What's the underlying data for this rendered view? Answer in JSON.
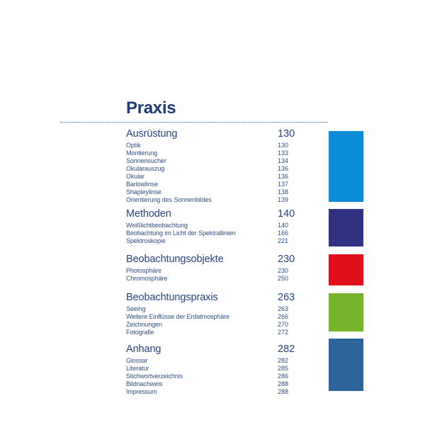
{
  "title": "Praxis",
  "colors": {
    "title_text": "#1d3b77",
    "heading_text": "#26437f",
    "entry_text": "#2e4d87",
    "divider": "#41609f"
  },
  "sections": [
    {
      "title": "Ausrüstung",
      "page": "130",
      "accent_color": "#0a8dd4",
      "entries": [
        {
          "label": "Optik",
          "page": "130"
        },
        {
          "label": "Montierung",
          "page": "133"
        },
        {
          "label": "Sonnensucher",
          "page": "134"
        },
        {
          "label": "Okularauszug",
          "page": "136"
        },
        {
          "label": "Okular",
          "page": "136"
        },
        {
          "label": "Barlowlinse",
          "page": "137"
        },
        {
          "label": "Shapleylinse",
          "page": "138"
        },
        {
          "label": "Orientierung des Sonnenbildes",
          "page": "139"
        }
      ]
    },
    {
      "title": "Methoden",
      "page": "140",
      "accent_color": "#303180",
      "entries": [
        {
          "label": "Weißlichtbeobachtung",
          "page": "140"
        },
        {
          "label": "Beobachtung im Licht der Spektrallinien",
          "page": "166"
        },
        {
          "label": "Spektroskopie",
          "page": "221"
        }
      ]
    },
    {
      "title": "Beobachtungsobjekte",
      "page": "230",
      "accent_color": "#e0101c",
      "entries": [
        {
          "label": "Photosphäre",
          "page": "230"
        },
        {
          "label": "Chromosphäre",
          "page": "250"
        }
      ]
    },
    {
      "title": "Beobachtungspraxis",
      "page": "263",
      "accent_color": "#76b42c",
      "entries": [
        {
          "label": "Seeing",
          "page": "263"
        },
        {
          "label": "Weitere Einflüsse der Erdatmosphäre",
          "page": "266"
        },
        {
          "label": "Zeichnungen",
          "page": "270"
        },
        {
          "label": "Fotografie",
          "page": "272"
        }
      ]
    },
    {
      "title": "Anhang",
      "page": "282",
      "accent_color": "#2e649c",
      "entries": [
        {
          "label": "Glossar",
          "page": "282"
        },
        {
          "label": "Literatur",
          "page": "285"
        },
        {
          "label": "Stichwortverzeichnis",
          "page": "286"
        },
        {
          "label": "Bildnachweis",
          "page": "288"
        },
        {
          "label": "Impressum",
          "page": "288"
        }
      ]
    }
  ]
}
